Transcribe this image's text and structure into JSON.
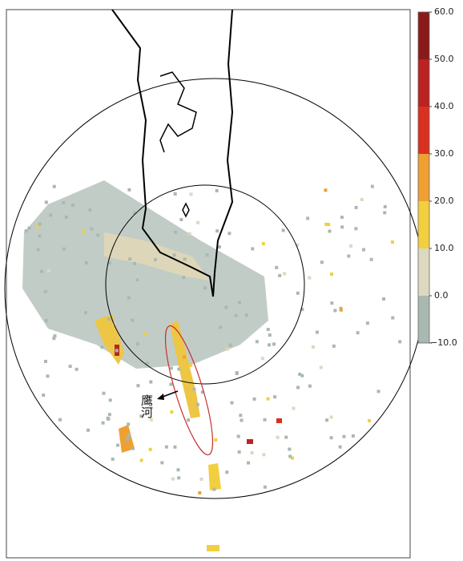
{
  "colorbar": {
    "range": [
      -10,
      60
    ],
    "ticks": [
      {
        "value": 60,
        "label": "60.0"
      },
      {
        "value": 50,
        "label": "50.0"
      },
      {
        "value": 40,
        "label": "40.0"
      },
      {
        "value": 30,
        "label": "30.0"
      },
      {
        "value": 20,
        "label": "20.0"
      },
      {
        "value": 10,
        "label": "10.0"
      },
      {
        "value": 0,
        "label": "0.0"
      },
      {
        "value": -10,
        "label": "−10.0"
      }
    ],
    "colors": [
      "#a9b9b1",
      "#ddd8c0",
      "#f2cf3e",
      "#eea032",
      "#d9301f",
      "#bb2222",
      "#8a1a1a"
    ]
  },
  "annotation": {
    "label": "鹰河"
  }
}
